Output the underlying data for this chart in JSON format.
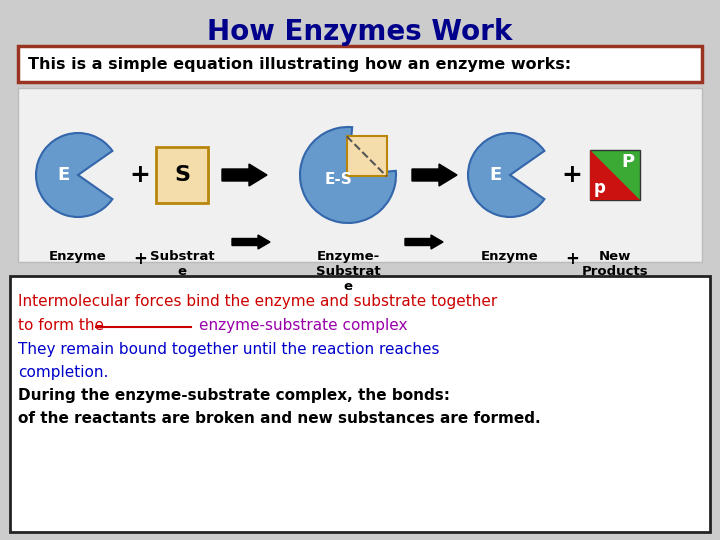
{
  "title": "How Enzymes Work",
  "title_color": "#00008B",
  "title_fontsize": 20,
  "subtitle": "This is a simple equation illustrating how an enzyme works:",
  "subtitle_fontsize": 11.5,
  "bg_color": "#CCCCCC",
  "enzyme_color": "#6699CC",
  "substrate_fill": "#F5DCAB",
  "substrate_border": "#B8860B",
  "red_box_border": "#993322",
  "bottom_box_border": "#222222",
  "line1_red": "Intermolecular forces bind the enzyme and substrate together",
  "line2_red_part": "to form the ",
  "line2_purple": "enzyme-substrate complex",
  "line3_blue": "They remain bound together until the reaction reaches",
  "line4_blue": "completion.",
  "line5_black": "During the enzyme-substrate complex, the bonds:",
  "line6_black": "of the reactants are broken and new substances are formed."
}
